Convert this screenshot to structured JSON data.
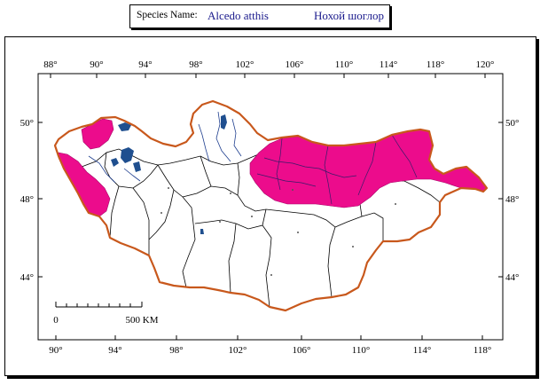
{
  "title": {
    "species_label": "Species Name:",
    "latin_name": "Alcedo atthis",
    "local_name": "Нохой шоглор"
  },
  "axes": {
    "top_longitudes": [
      "88°",
      "90°",
      "94°",
      "98°",
      "102°",
      "106°",
      "110°",
      "114°",
      "118°",
      "120°"
    ],
    "bottom_longitudes": [
      "90°",
      "94°",
      "98°",
      "102°",
      "106°",
      "110°",
      "114°",
      "118°"
    ],
    "left_latitudes": [
      "50°",
      "48°",
      "44°"
    ],
    "right_latitudes": [
      "50°",
      "48°",
      "44°"
    ]
  },
  "scale_bar": {
    "start_label": "0",
    "end_label": "500 KM"
  },
  "colors": {
    "border": "#c8581c",
    "range": "#ec0c8c",
    "water": "#1f4f8f",
    "admin": "#000000"
  }
}
